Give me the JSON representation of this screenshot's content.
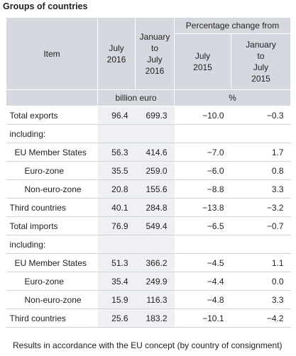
{
  "title": "Groups of countries",
  "table": {
    "header": {
      "item": "Item",
      "col1": [
        "July",
        "2016"
      ],
      "col2": [
        "January",
        "to",
        "July",
        "2016"
      ],
      "group": "Percentage change from",
      "col3": [
        "July",
        "2015"
      ],
      "col4": [
        "January",
        "to",
        "July",
        "2015"
      ],
      "unit1": "billion euro",
      "unit2": "%"
    },
    "rows": [
      {
        "label": "Total exports",
        "level": 0,
        "values": [
          "96.4",
          "699.3",
          "−10.0",
          "−0.3"
        ]
      },
      {
        "label": "including:",
        "level": 0
      },
      {
        "label": "EU Member States",
        "level": 1,
        "values": [
          "56.3",
          "414.6",
          "−7.0",
          "1.7"
        ]
      },
      {
        "label": "Euro-zone",
        "level": 2,
        "values": [
          "35.5",
          "259.0",
          "−6.0",
          "0.8"
        ]
      },
      {
        "label": "Non-euro-zone",
        "level": 2,
        "values": [
          "20.8",
          "155.6",
          "−8.8",
          "3.3"
        ]
      },
      {
        "label": "Third countries",
        "level": 0,
        "values": [
          "40.1",
          "284.8",
          "−13.8",
          "−3.2"
        ]
      },
      {
        "label": "Total imports",
        "level": 0,
        "values": [
          "76.9",
          "549.4",
          "−6.5",
          "−0.7"
        ]
      },
      {
        "label": "including:",
        "level": 0
      },
      {
        "label": "EU Member States",
        "level": 1,
        "values": [
          "51.3",
          "366.2",
          "−4.5",
          "1.1"
        ]
      },
      {
        "label": "Euro-zone",
        "level": 2,
        "values": [
          "35.4",
          "249.9",
          "−4.4",
          "0.0"
        ]
      },
      {
        "label": "Non-euro-zone",
        "level": 2,
        "values": [
          "15.9",
          "116.3",
          "−4.8",
          "3.3"
        ]
      },
      {
        "label": "Third countries",
        "level": 0,
        "values": [
          "25.6",
          "183.2",
          "−10.1",
          "−4.2"
        ]
      }
    ]
  },
  "footnote": "Results in accordance with the EU concept (by country of consignment)"
}
